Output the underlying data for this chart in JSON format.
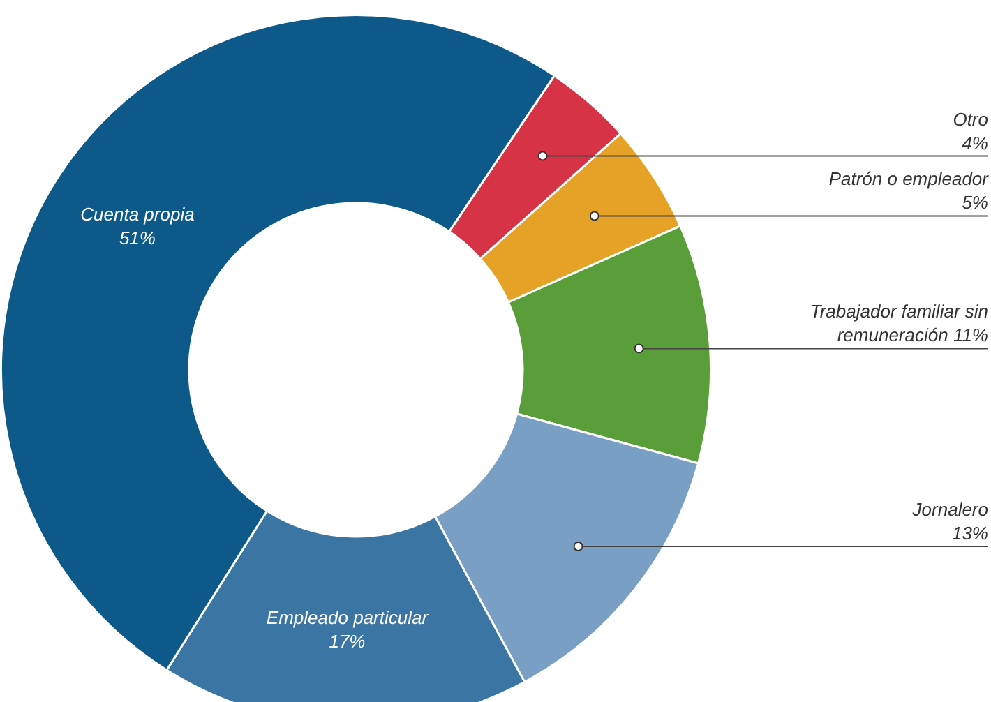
{
  "chart_data": {
    "type": "donut",
    "categories": [
      "Otro",
      "Patrón o empleador",
      "Trabajador familiar sin remuneración",
      "Jornalero",
      "Empleado particular",
      "Cuenta propia"
    ],
    "values": [
      4,
      5,
      11,
      13,
      17,
      51
    ],
    "value_labels": [
      "4%",
      "5%",
      "11%",
      "13%",
      "17%",
      "51%"
    ],
    "colors": [
      "#d63347",
      "#e5a226",
      "#5a9e3a",
      "#7a9fc4",
      "#3a75a3",
      "#0d5a8a"
    ],
    "legend": false
  }
}
